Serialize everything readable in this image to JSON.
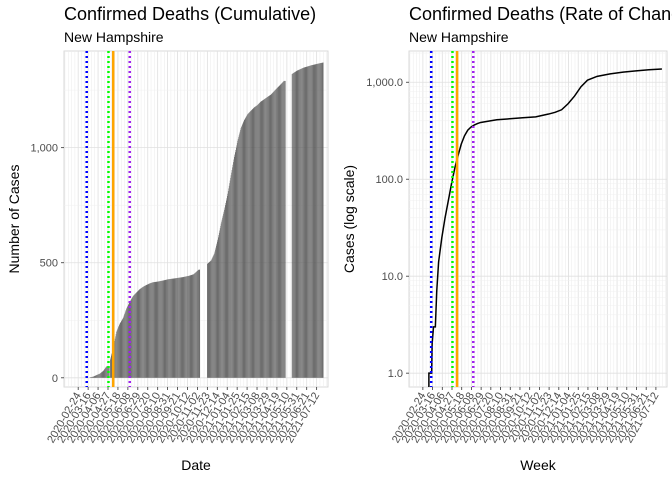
{
  "chart_data": [
    {
      "type": "bar",
      "title": "Confirmed Deaths (Cumulative)",
      "subtitle": "New Hampshire",
      "xlabel": "Date",
      "ylabel": "Number of Cases",
      "ylim": [
        -40,
        1420
      ],
      "xlim": [
        "2020-01-25",
        "2021-08-05"
      ],
      "y_ticks": [
        0,
        500,
        1000
      ],
      "y_tick_labels": [
        "0",
        "500",
        "1,000"
      ],
      "x_ticks": [
        "2020-02-24",
        "2020-03-16",
        "2020-04-06",
        "2020-04-27",
        "2020-05-18",
        "2020-06-08",
        "2020-06-29",
        "2020-07-20",
        "2020-08-10",
        "2020-08-31",
        "2020-09-21",
        "2020-10-12",
        "2020-11-02",
        "2020-11-23",
        "2020-12-14",
        "2021-01-04",
        "2021-01-25",
        "2021-02-15",
        "2021-03-08",
        "2021-03-29",
        "2021-04-19",
        "2021-05-10",
        "2021-05-31",
        "2021-06-21",
        "2021-07-12"
      ],
      "grid": true,
      "bar_color": "#595959",
      "vlines": [
        {
          "x": "2020-03-13",
          "color": "#0000ff",
          "style": "dotted"
        },
        {
          "x": "2020-04-28",
          "color": "#00ff00",
          "style": "dotted"
        },
        {
          "x": "2020-05-08",
          "color": "#ffa500",
          "style": "solid"
        },
        {
          "x": "2020-06-12",
          "color": "#a020f0",
          "style": "dotted"
        }
      ],
      "points": [
        [
          "2020-03-10",
          0
        ],
        [
          "2020-03-20",
          2
        ],
        [
          "2020-03-27",
          5
        ],
        [
          "2020-04-03",
          12
        ],
        [
          "2020-04-10",
          18
        ],
        [
          "2020-04-17",
          30
        ],
        [
          "2020-04-24",
          50
        ],
        [
          "2020-05-01",
          0
        ],
        [
          "2020-05-02",
          80
        ],
        [
          "2020-05-08",
          130
        ],
        [
          "2020-05-15",
          200
        ],
        [
          "2020-05-22",
          235
        ],
        [
          "2020-05-29",
          260
        ],
        [
          "2020-06-05",
          300
        ],
        [
          "2020-06-12",
          330
        ],
        [
          "2020-06-19",
          355
        ],
        [
          "2020-06-26",
          370
        ],
        [
          "2020-07-03",
          385
        ],
        [
          "2020-07-10",
          395
        ],
        [
          "2020-07-17",
          403
        ],
        [
          "2020-07-24",
          410
        ],
        [
          "2020-07-31",
          415
        ],
        [
          "2020-08-10",
          418
        ],
        [
          "2020-08-20",
          422
        ],
        [
          "2020-09-01",
          428
        ],
        [
          "2020-09-15",
          432
        ],
        [
          "2020-10-01",
          437
        ],
        [
          "2020-10-15",
          443
        ],
        [
          "2020-10-25",
          450
        ],
        [
          "2020-11-05",
          470
        ],
        [
          "2020-11-08",
          0
        ],
        [
          "2020-11-22",
          0
        ],
        [
          "2020-11-23",
          495
        ],
        [
          "2020-12-01",
          510
        ],
        [
          "2020-12-08",
          540
        ],
        [
          "2020-12-15",
          600
        ],
        [
          "2020-12-22",
          670
        ],
        [
          "2020-12-29",
          730
        ],
        [
          "2021-01-05",
          800
        ],
        [
          "2021-01-12",
          880
        ],
        [
          "2021-01-19",
          960
        ],
        [
          "2021-01-26",
          1030
        ],
        [
          "2021-02-02",
          1085
        ],
        [
          "2021-02-09",
          1120
        ],
        [
          "2021-02-16",
          1145
        ],
        [
          "2021-02-23",
          1160
        ],
        [
          "2021-03-02",
          1175
        ],
        [
          "2021-03-09",
          1185
        ],
        [
          "2021-03-16",
          1200
        ],
        [
          "2021-03-23",
          1210
        ],
        [
          "2021-03-30",
          1220
        ],
        [
          "2021-04-06",
          1230
        ],
        [
          "2021-04-13",
          1245
        ],
        [
          "2021-04-20",
          1260
        ],
        [
          "2021-04-27",
          1275
        ],
        [
          "2021-05-04",
          1290
        ],
        [
          "2021-05-08",
          0
        ],
        [
          "2021-05-20",
          0
        ],
        [
          "2021-05-21",
          1320
        ],
        [
          "2021-06-01",
          1335
        ],
        [
          "2021-06-15",
          1348
        ],
        [
          "2021-07-01",
          1358
        ],
        [
          "2021-07-15",
          1365
        ],
        [
          "2021-07-26",
          1370
        ]
      ]
    },
    {
      "type": "line",
      "title": "Confirmed Deaths (Rate of Change)",
      "subtitle": "New Hampshire",
      "xlabel": "Week",
      "ylabel": "Cases (log scale)",
      "y_scale": "log",
      "ylim": [
        0.72,
        2100
      ],
      "xlim": [
        "2020-01-25",
        "2021-08-05"
      ],
      "y_ticks": [
        1,
        10,
        100,
        1000
      ],
      "y_tick_labels": [
        "1.0",
        "10.0",
        "100.0",
        "1,000.0"
      ],
      "x_ticks": [
        "2020-02-24",
        "2020-03-16",
        "2020-04-06",
        "2020-04-27",
        "2020-05-18",
        "2020-06-08",
        "2020-06-29",
        "2020-07-20",
        "2020-08-10",
        "2020-08-31",
        "2020-09-21",
        "2020-10-12",
        "2020-11-02",
        "2020-11-23",
        "2020-12-14",
        "2021-01-04",
        "2021-01-25",
        "2021-02-15",
        "2021-03-08",
        "2021-03-29",
        "2021-04-19",
        "2021-05-10",
        "2021-05-31",
        "2021-06-21",
        "2021-07-12"
      ],
      "grid": true,
      "line_color": "#000000",
      "vlines": [
        {
          "x": "2020-03-13",
          "color": "#0000ff",
          "style": "dotted"
        },
        {
          "x": "2020-04-28",
          "color": "#00ff00",
          "style": "dotted"
        },
        {
          "x": "2020-05-08",
          "color": "#ffa500",
          "style": "solid"
        },
        {
          "x": "2020-06-12",
          "color": "#a020f0",
          "style": "dotted"
        }
      ],
      "points": [
        [
          "2020-03-08",
          0.72
        ],
        [
          "2020-03-08",
          1
        ],
        [
          "2020-03-14",
          1
        ],
        [
          "2020-03-15",
          2
        ],
        [
          "2020-03-18",
          3
        ],
        [
          "2020-03-22",
          3
        ],
        [
          "2020-03-25",
          7
        ],
        [
          "2020-03-29",
          14
        ],
        [
          "2020-04-05",
          25
        ],
        [
          "2020-04-12",
          40
        ],
        [
          "2020-04-19",
          60
        ],
        [
          "2020-04-26",
          90
        ],
        [
          "2020-05-03",
          130
        ],
        [
          "2020-05-10",
          175
        ],
        [
          "2020-05-17",
          230
        ],
        [
          "2020-05-24",
          280
        ],
        [
          "2020-05-31",
          320
        ],
        [
          "2020-06-07",
          345
        ],
        [
          "2020-06-14",
          362
        ],
        [
          "2020-06-21",
          375
        ],
        [
          "2020-06-28",
          385
        ],
        [
          "2020-07-12",
          395
        ],
        [
          "2020-08-02",
          410
        ],
        [
          "2020-08-30",
          420
        ],
        [
          "2020-09-27",
          430
        ],
        [
          "2020-10-25",
          440
        ],
        [
          "2020-11-22",
          470
        ],
        [
          "2020-12-06",
          490
        ],
        [
          "2020-12-20",
          520
        ],
        [
          "2021-01-03",
          600
        ],
        [
          "2021-01-17",
          720
        ],
        [
          "2021-01-31",
          900
        ],
        [
          "2021-02-14",
          1050
        ],
        [
          "2021-03-07",
          1150
        ],
        [
          "2021-04-04",
          1220
        ],
        [
          "2021-05-02",
          1270
        ],
        [
          "2021-05-30",
          1310
        ],
        [
          "2021-06-27",
          1345
        ],
        [
          "2021-07-25",
          1370
        ]
      ]
    }
  ]
}
